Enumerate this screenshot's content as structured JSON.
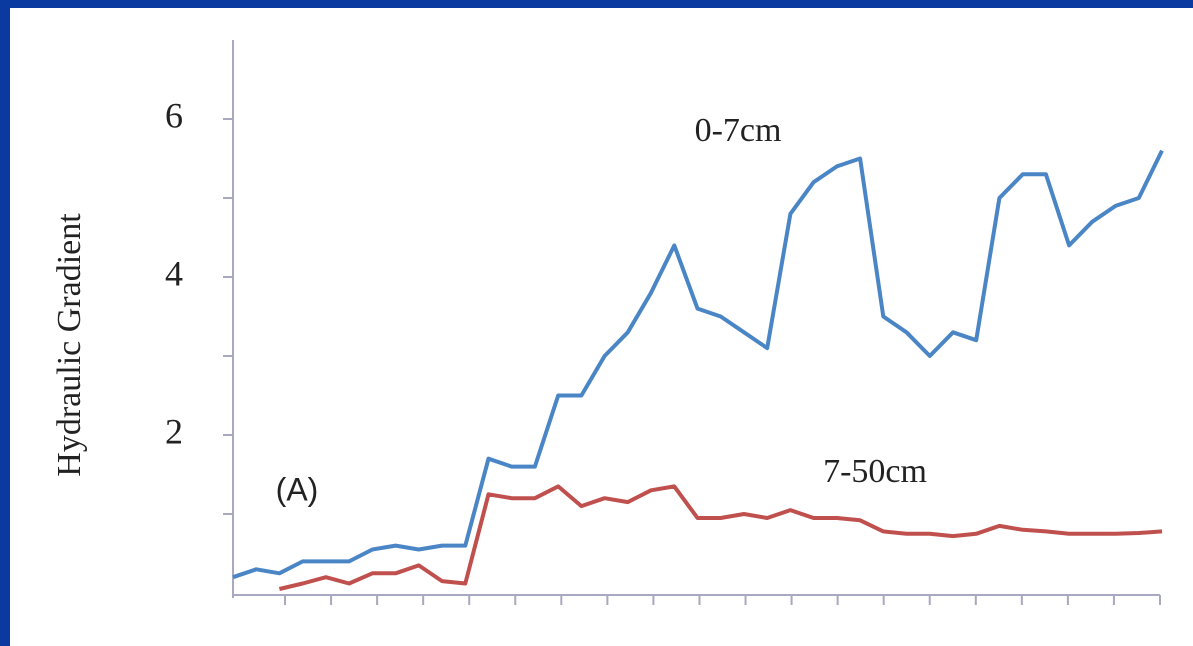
{
  "chart_data": {
    "type": "line",
    "y_label": "Hydraulic Gradient",
    "annotations": [
      "0-7cm",
      "7-50cm",
      "(A)"
    ],
    "ylim": [
      0,
      7
    ],
    "yticks": [
      2,
      4,
      6
    ],
    "yminorticks": [
      1,
      3,
      5
    ],
    "series": [
      {
        "name": "0-7cm",
        "color": "#4a86c5",
        "values": [
          0.2,
          0.3,
          0.25,
          0.4,
          0.4,
          0.4,
          0.55,
          0.6,
          0.55,
          0.6,
          0.6,
          1.7,
          1.6,
          1.6,
          2.5,
          2.5,
          3.0,
          3.3,
          3.8,
          4.4,
          3.6,
          3.5,
          3.3,
          3.1,
          4.8,
          5.2,
          5.4,
          5.5,
          3.5,
          3.3,
          3.0,
          3.3,
          3.2,
          5.0,
          5.3,
          5.3,
          4.4,
          4.7,
          4.9,
          5.0,
          5.6
        ]
      },
      {
        "name": "7-50cm",
        "color": "#c0504d",
        "values": [
          null,
          null,
          0.05,
          0.12,
          0.2,
          0.12,
          0.25,
          0.25,
          0.35,
          0.15,
          0.12,
          1.25,
          1.2,
          1.2,
          1.35,
          1.1,
          1.2,
          1.15,
          1.3,
          1.35,
          0.95,
          0.95,
          1.0,
          0.95,
          1.05,
          0.95,
          0.95,
          0.92,
          0.78,
          0.75,
          0.75,
          0.72,
          0.75,
          0.85,
          0.8,
          0.78,
          0.75,
          0.75,
          0.75,
          0.76,
          0.78
        ]
      }
    ]
  }
}
